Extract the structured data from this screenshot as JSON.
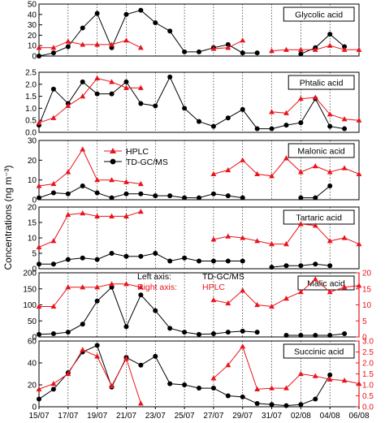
{
  "figure": {
    "ylabel": "Concentrations (ng m⁻³)",
    "x_ticks": [
      "15/07",
      "17/07",
      "19/07",
      "21/07",
      "23/07",
      "25/07",
      "27/07",
      "29/07",
      "31/07",
      "02/08",
      "04/08",
      "06/08"
    ],
    "legend": {
      "hplc": "HPLC",
      "tdgcms": "TD-GC/MS"
    },
    "axis_note": {
      "left_label": "Left axis:",
      "left_value": "TD-GC/MS",
      "right_label": "Right axis:",
      "right_value": "HPLC"
    },
    "colors": {
      "hplc": "#e8141b",
      "tdgcms": "#000000"
    }
  },
  "chart_data": [
    {
      "type": "line",
      "title": "Glycolic acid",
      "ylim": [
        0,
        50
      ],
      "yticks": [
        0,
        10,
        20,
        30,
        40,
        50
      ],
      "x_dates": [
        "15/07",
        "16/07",
        "17/07",
        "18/07",
        "19/07",
        "20/07",
        "21/07",
        "22/07",
        "23/07",
        "24/07",
        "25/07",
        "26/07",
        "27/07",
        "28/07",
        "29/07",
        "30/07",
        "31/07",
        "01/08",
        "02/08",
        "03/08",
        "04/08",
        "05/08",
        "06/08"
      ],
      "series": [
        {
          "name": "TD-GC/MS",
          "values": [
            0,
            3,
            9,
            27,
            41,
            8,
            40,
            44,
            32,
            24,
            4,
            4,
            8,
            11,
            3,
            3,
            null,
            null,
            2,
            8,
            21,
            9,
            null
          ]
        },
        {
          "name": "HPLC",
          "values": [
            8,
            8,
            14,
            11,
            11,
            11,
            15,
            8,
            null,
            null,
            null,
            null,
            7,
            8,
            15,
            null,
            5,
            6,
            6,
            6,
            10,
            6,
            6
          ]
        }
      ]
    },
    {
      "type": "line",
      "title": "Phtalic acid",
      "ylim": [
        0,
        2.5
      ],
      "yticks": [
        0.0,
        0.5,
        1.0,
        1.5,
        2.0,
        2.5
      ],
      "yticklabels": [
        "0.0",
        "0.5",
        "1.0",
        "1.5",
        "2.0",
        "2.5"
      ],
      "series": [
        {
          "name": "TD-GC/MS",
          "values": [
            0.3,
            1.8,
            1.2,
            2.1,
            1.6,
            1.6,
            2.1,
            1.2,
            1.1,
            2.3,
            1.0,
            0.45,
            0.25,
            0.6,
            0.95,
            0.15,
            0.15,
            0.3,
            0.4,
            1.4,
            0.25,
            0.15,
            null
          ]
        },
        {
          "name": "HPLC",
          "values": [
            0.4,
            0.6,
            1.1,
            1.5,
            2.25,
            2.1,
            1.85,
            1.85,
            null,
            null,
            null,
            null,
            null,
            null,
            null,
            null,
            0.85,
            0.8,
            1.4,
            1.45,
            0.75,
            0.55,
            0.5
          ]
        }
      ]
    },
    {
      "type": "line",
      "title": "Malonic acid",
      "ylim": [
        0,
        30
      ],
      "yticks": [
        0,
        10,
        20,
        30
      ],
      "series": [
        {
          "name": "TD-GC/MS",
          "values": [
            1,
            3.5,
            3,
            7,
            3.5,
            1,
            3,
            3,
            2,
            2,
            1,
            1,
            3,
            2,
            1,
            null,
            null,
            null,
            1,
            1,
            7,
            null,
            null
          ]
        },
        {
          "name": "HPLC",
          "values": [
            7,
            8,
            14,
            25.5,
            10,
            10,
            9,
            8,
            null,
            null,
            null,
            null,
            13,
            15,
            20,
            13,
            12,
            21,
            14,
            17,
            14,
            16,
            13
          ]
        }
      ]
    },
    {
      "type": "line",
      "title": "Tartaric acid",
      "ylim": [
        0,
        20
      ],
      "yticks": [
        0,
        5,
        10,
        15,
        20
      ],
      "series": [
        {
          "name": "TD-GC/MS",
          "values": [
            1.5,
            1.5,
            3,
            3.5,
            3,
            5,
            4,
            4,
            5,
            2.5,
            3.5,
            2.5,
            2.5,
            2.5,
            2.5,
            null,
            0.5,
            1,
            1,
            1.5,
            1,
            null,
            null
          ]
        },
        {
          "name": "HPLC",
          "values": [
            7,
            9,
            17.5,
            18,
            17,
            17,
            17,
            18.5,
            null,
            null,
            null,
            null,
            9.5,
            10.5,
            10,
            9,
            8,
            8,
            14.5,
            14,
            9,
            10,
            8
          ]
        }
      ]
    },
    {
      "type": "line",
      "title": "Malic acid",
      "ylim": [
        0,
        200
      ],
      "yticks": [
        0,
        50,
        100,
        150,
        200
      ],
      "y2lim": [
        0,
        20
      ],
      "y2ticks": [
        0,
        5,
        10,
        15,
        20
      ],
      "series": [
        {
          "name": "TD-GC/MS",
          "axis": "left",
          "values": [
            8,
            10,
            15,
            40,
            112,
            155,
            32,
            131,
            82,
            27,
            15,
            8,
            10,
            15,
            18,
            15,
            null,
            5,
            5,
            5,
            5,
            10,
            null
          ]
        },
        {
          "name": "HPLC",
          "axis": "right",
          "values": [
            9.5,
            9.5,
            15.5,
            15.5,
            15.5,
            16.5,
            16.5,
            15.5,
            null,
            null,
            null,
            null,
            11.5,
            10.5,
            14.5,
            10,
            9.5,
            12,
            14,
            18,
            14,
            15.5,
            16
          ]
        }
      ]
    },
    {
      "type": "line",
      "title": "Succinic acid",
      "ylim": [
        0,
        60
      ],
      "yticks": [
        0,
        20,
        40,
        60
      ],
      "y2lim": [
        0,
        3.0
      ],
      "y2ticks": [
        0.0,
        0.5,
        1.0,
        1.5,
        2.0,
        2.5,
        3.0
      ],
      "y2ticklabels": [
        "0.0",
        "0.5",
        "1.0",
        "1.5",
        "2.0",
        "2.5",
        "3.0"
      ],
      "series": [
        {
          "name": "TD-GC/MS",
          "axis": "left",
          "values": [
            7,
            16,
            31,
            50,
            56,
            18,
            45,
            38,
            46,
            21,
            20,
            17,
            17,
            10,
            9,
            3,
            2,
            1,
            2,
            7,
            29,
            null,
            null
          ]
        },
        {
          "name": "HPLC",
          "axis": "right",
          "values": [
            0.8,
            1.05,
            1.5,
            2.6,
            2.3,
            0.95,
            2.2,
            0.15,
            null,
            null,
            null,
            null,
            1.3,
            1.9,
            2.75,
            0.8,
            0.85,
            0.85,
            1.5,
            1.4,
            1.25,
            1.2,
            1.05
          ]
        }
      ]
    }
  ]
}
